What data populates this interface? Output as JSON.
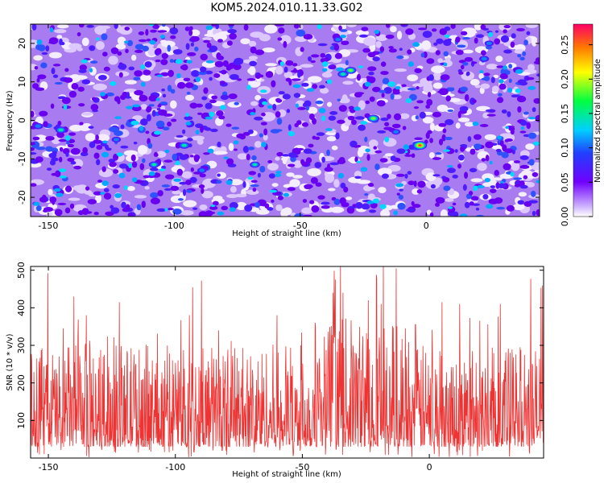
{
  "title": "KOM5.2024.010.11.33.G02",
  "chart_data": [
    {
      "type": "heatmap",
      "title": "KOM5.2024.010.11.33.G02",
      "xlabel": "Height of straight line (km)",
      "ylabel": "Frequency (Hz)",
      "xlim": [
        -157,
        45
      ],
      "ylim": [
        -25,
        25
      ],
      "x_ticks": [
        -150,
        -100,
        -50,
        0
      ],
      "y_ticks": [
        -20,
        -10,
        0,
        10,
        20
      ],
      "colorbar": {
        "label": "Normalized spectral amplitude",
        "range": [
          0,
          0.28
        ],
        "ticks": [
          "0.00",
          "0.05",
          "0.10",
          "0.15",
          "0.20",
          "0.25"
        ]
      },
      "peaks": [
        {
          "x": -2.5,
          "y": -6.5,
          "value": 0.27
        },
        {
          "x": -21,
          "y": 0.5,
          "value": 0.2
        },
        {
          "x": -30,
          "y": 13,
          "value": 0.17
        },
        {
          "x": -33,
          "y": 12,
          "value": 0.15
        },
        {
          "x": -96,
          "y": -6.5,
          "value": 0.16
        },
        {
          "x": -145,
          "y": -2.5,
          "value": 0.16
        },
        {
          "x": -154,
          "y": -1.5,
          "value": 0.12
        },
        {
          "x": -108,
          "y": -11.5,
          "value": 0.14
        },
        {
          "x": -68,
          "y": -11.5,
          "value": 0.13
        },
        {
          "x": -89,
          "y": -13,
          "value": 0.1
        },
        {
          "x": 23,
          "y": 16,
          "value": 0.12
        },
        {
          "x": 25,
          "y": 20,
          "value": 0.1
        },
        {
          "x": -35,
          "y": 21,
          "value": 0.1
        },
        {
          "x": 15,
          "y": 3,
          "value": 0.08
        },
        {
          "x": -53,
          "y": -9,
          "value": 0.08
        },
        {
          "x": -47,
          "y": -8,
          "value": 0.08
        },
        {
          "x": -123,
          "y": -5,
          "value": 0.1
        },
        {
          "x": -80,
          "y": 6,
          "value": 0.07
        },
        {
          "x": -10,
          "y": -8,
          "value": 0.08
        },
        {
          "x": -12,
          "y": -3,
          "value": 0.09
        },
        {
          "x": 38,
          "y": 10,
          "value": 0.08
        },
        {
          "x": 30,
          "y": -17,
          "value": 0.07
        },
        {
          "x": -75,
          "y": 15,
          "value": 0.07
        },
        {
          "x": 10,
          "y": -13,
          "value": 0.08
        },
        {
          "x": -135,
          "y": 10,
          "value": 0.07
        }
      ]
    },
    {
      "type": "line",
      "xlabel": "Height of straight line (km)",
      "ylabel": "SNR (10 * v/v)",
      "xlim": [
        -157,
        45
      ],
      "ylim": [
        0,
        510
      ],
      "x_ticks": [
        -150,
        -100,
        -50,
        0
      ],
      "y_ticks": [
        100,
        200,
        300,
        400,
        500
      ],
      "color": "#ee3333",
      "sample_count": 1400,
      "baseline_mean": 120,
      "typical_range": [
        30,
        280
      ],
      "peaks": [
        {
          "x": -140,
          "y": 430
        },
        {
          "x": -135,
          "y": 380
        },
        {
          "x": -122,
          "y": 415
        },
        {
          "x": -83,
          "y": 340
        },
        {
          "x": -60,
          "y": 380
        },
        {
          "x": -45,
          "y": 360
        },
        {
          "x": -37,
          "y": 475
        },
        {
          "x": -35,
          "y": 510
        },
        {
          "x": -34,
          "y": 440
        },
        {
          "x": -24,
          "y": 420
        },
        {
          "x": -19,
          "y": 410
        },
        {
          "x": -13,
          "y": 505
        },
        {
          "x": 5,
          "y": 415
        },
        {
          "x": 12,
          "y": 410
        },
        {
          "x": 28,
          "y": 410
        }
      ]
    }
  ]
}
